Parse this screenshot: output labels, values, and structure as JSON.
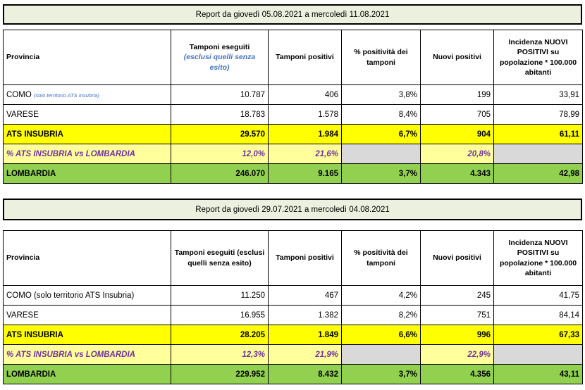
{
  "reports": [
    {
      "title": "Report da giovedì 05.08.2021 a mercoledì 11.08.2021",
      "headers": {
        "provincia": "Provincia",
        "tamponi_eseguiti": "Tamponi eseguiti",
        "tamponi_eseguiti_note": "(esclusi quelli senza esito)",
        "tamponi_positivi": "Tamponi positivi",
        "positivita": "% positività dei tamponi",
        "nuovi_positivi": "Nuovi positivi",
        "incidenza": "Incidenza NUOVI POSITIVI su popolazione * 100.000 abitanti"
      },
      "rows": {
        "como": {
          "label": "COMO",
          "label_note": "(solo territorio ATS Insubria)",
          "tamponi": "10.787",
          "positivi": "406",
          "perc": "3,8%",
          "nuovi": "199",
          "incidenza": "33,91"
        },
        "varese": {
          "label": "VARESE",
          "tamponi": "18.783",
          "positivi": "1.578",
          "perc": "8,4%",
          "nuovi": "705",
          "incidenza": "78,99"
        },
        "ats": {
          "label": "ATS INSUBRIA",
          "tamponi": "29.570",
          "positivi": "1.984",
          "perc": "6,7%",
          "nuovi": "904",
          "incidenza": "61,11"
        },
        "pct": {
          "label": "% ATS INSUBRIA vs LOMBARDIA",
          "tamponi": "12,0%",
          "positivi": "21,6%",
          "nuovi": "20,8%"
        },
        "lombardia": {
          "label": "LOMBARDIA",
          "tamponi": "246.070",
          "positivi": "9.165",
          "perc": "3,7%",
          "nuovi": "4.343",
          "incidenza": "42,98"
        }
      }
    },
    {
      "title": "Report da giovedì 29.07.2021 a mercoledì 04.08.2021",
      "headers": {
        "provincia": "Provincia",
        "tamponi_eseguiti": "Tamponi eseguiti (esclusi quelli senza esito)",
        "tamponi_positivi": "Tamponi positivi",
        "positivita": "% positività dei tamponi",
        "nuovi_positivi": "Nuovi positivi",
        "incidenza": "Incidenza NUOVI POSITIVI su popolazione * 100.000 abitanti"
      },
      "rows": {
        "como": {
          "label": "COMO (solo territorio ATS Insubria)",
          "tamponi": "11.250",
          "positivi": "467",
          "perc": "4,2%",
          "nuovi": "245",
          "incidenza": "41,75"
        },
        "varese": {
          "label": "VARESE",
          "tamponi": "16.955",
          "positivi": "1.382",
          "perc": "8,2%",
          "nuovi": "751",
          "incidenza": "84,14"
        },
        "ats": {
          "label": "ATS INSUBRIA",
          "tamponi": "28.205",
          "positivi": "1.849",
          "perc": "6,6%",
          "nuovi": "996",
          "incidenza": "67,33"
        },
        "pct": {
          "label": "% ATS INSUBRIA vs LOMBARDIA",
          "tamponi": "12,3%",
          "positivi": "21,9%",
          "nuovi": "22,9%"
        },
        "lombardia": {
          "label": "LOMBARDIA",
          "tamponi": "229.952",
          "positivi": "8.432",
          "perc": "3,7%",
          "nuovi": "4.356",
          "incidenza": "43,11"
        }
      }
    }
  ]
}
